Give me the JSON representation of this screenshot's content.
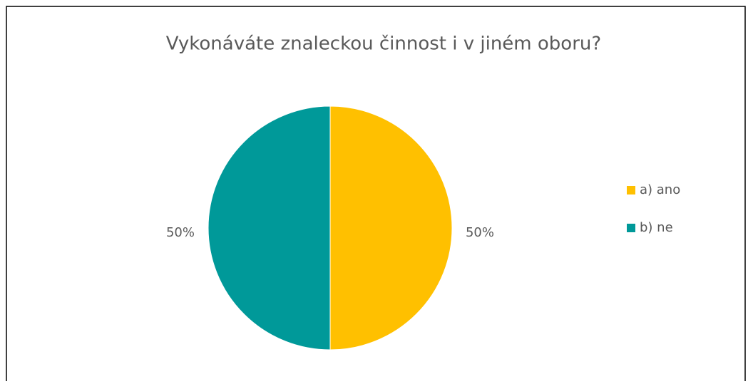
{
  "chart_data": {
    "type": "pie",
    "title": "Vykonáváte znaleckou činnost i v jiném oboru?",
    "categories": [
      "a) ano",
      "b) ne"
    ],
    "values": [
      50,
      50
    ],
    "value_labels": [
      "50%",
      "50%"
    ],
    "colors": [
      "#ffc000",
      "#009999"
    ],
    "legend": "right"
  }
}
